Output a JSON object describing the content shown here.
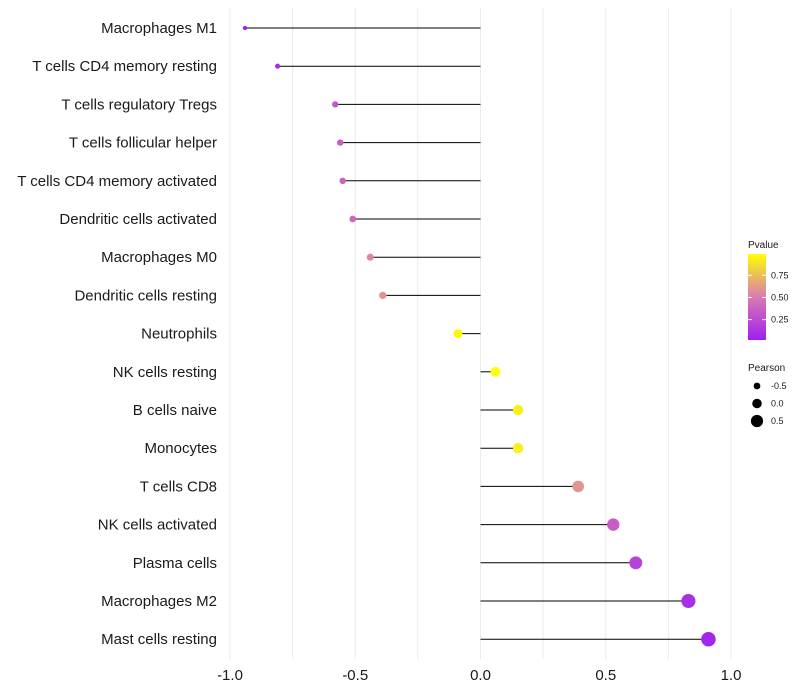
{
  "chart_data": {
    "type": "lollipop",
    "categories": [
      "Macrophages M1",
      "T cells CD4 memory resting",
      "T cells regulatory  Tregs ",
      "T cells follicular helper",
      "T cells CD4 memory activated",
      "Dendritic cells activated",
      "Macrophages M0",
      "Dendritic cells resting",
      "Neutrophils",
      "NK cells resting",
      "B cells naive",
      "Monocytes",
      "T cells CD8",
      "NK cells activated",
      "Plasma cells",
      "Macrophages M2",
      "Mast cells resting"
    ],
    "pearson": [
      -0.94,
      -0.81,
      -0.58,
      -0.56,
      -0.55,
      -0.51,
      -0.44,
      -0.39,
      -0.09,
      0.06,
      0.15,
      0.15,
      0.39,
      0.53,
      0.62,
      0.83,
      0.91
    ],
    "pvalue": [
      0.02,
      0.08,
      0.32,
      0.36,
      0.38,
      0.4,
      0.55,
      0.6,
      0.96,
      0.99,
      0.93,
      0.93,
      0.6,
      0.35,
      0.2,
      0.1,
      0.05
    ],
    "xlim": [
      -1.0,
      1.0
    ],
    "x_ticks": [
      -1.0,
      -0.5,
      0.0,
      0.5,
      1.0
    ],
    "x_tick_labels": [
      "-1.0",
      "-0.5",
      "0.0",
      "0.5",
      "1.0"
    ],
    "title": "",
    "xlabel": "",
    "ylabel": "",
    "grid": true,
    "legend": {
      "placement": "right",
      "color": {
        "title": "Pvalue",
        "ticks": [
          0.25,
          0.5,
          0.75
        ],
        "tick_labels": [
          "0.25",
          "0.50",
          "0.75"
        ],
        "range": [
          0.02,
          0.99
        ],
        "low_color": "#a020f0",
        "mid_color": "#d87bb3",
        "high_color": "#ffff00"
      },
      "size": {
        "title": "Pearson",
        "values": [
          -0.5,
          0.0,
          0.5
        ],
        "labels": [
          "-0.5",
          "0.0",
          "0.5"
        ]
      }
    }
  }
}
